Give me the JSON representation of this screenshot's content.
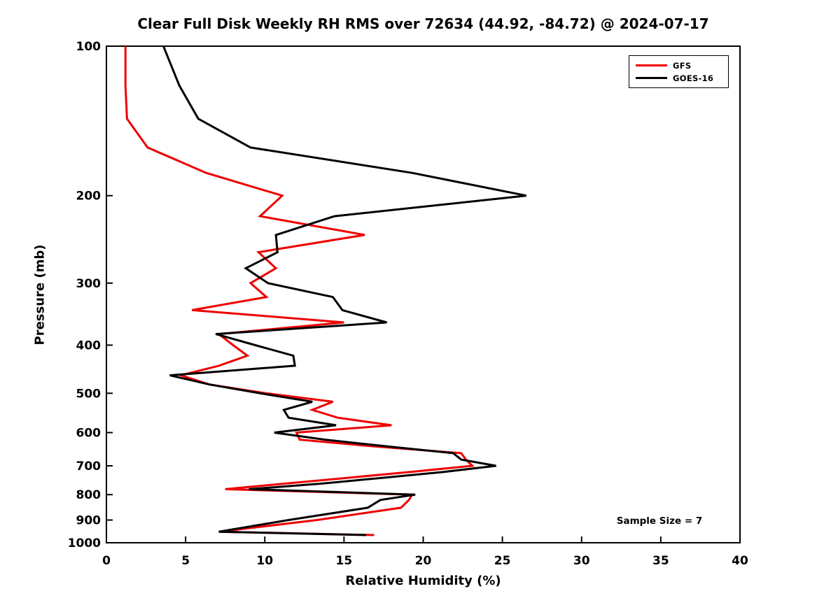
{
  "title": "Clear Full Disk Weekly RH RMS over 72634 (44.92, -84.72) @ 2024-07-17",
  "annotation": "Sample Size = 7",
  "axes": {
    "x": {
      "label": "Relative Humidity (%)",
      "min": 0,
      "max": 40,
      "ticks": [
        0,
        5,
        10,
        15,
        20,
        25,
        30,
        35,
        40
      ]
    },
    "y": {
      "label": "Pressure (mb)",
      "scale": "log",
      "min": 100,
      "max": 1000,
      "inverted": true,
      "ticks": [
        100,
        200,
        300,
        400,
        500,
        600,
        700,
        800,
        900,
        1000
      ]
    }
  },
  "legend": {
    "position": "top-right",
    "items": [
      {
        "label": "GFS",
        "color": "#EE0000"
      },
      {
        "label": "GOES-16",
        "color": "#000000"
      }
    ]
  },
  "colors": {
    "background": "#FFFFFF",
    "axis": "#000000"
  },
  "chart_data": {
    "type": "line",
    "orientation": "vertical-profile",
    "title": "Clear Full Disk Weekly RH RMS over 72634 (44.92, -84.72) @ 2024-07-17",
    "xlabel": "Relative Humidity (%)",
    "ylabel": "Pressure (mb)",
    "xlim": [
      0,
      40
    ],
    "ylim": [
      100,
      1000
    ],
    "y_scale": "log",
    "grid": false,
    "pressure_levels_mb": [
      100,
      120,
      140,
      160,
      180,
      200,
      220,
      240,
      260,
      280,
      300,
      320,
      340,
      360,
      380,
      400,
      420,
      440,
      460,
      480,
      500,
      520,
      540,
      560,
      580,
      600,
      620,
      640,
      660,
      680,
      700,
      720,
      740,
      760,
      780,
      800,
      820,
      850,
      900,
      950,
      965
    ],
    "series": [
      {
        "name": "GFS",
        "color": "#EE0000",
        "line_width": 3,
        "rh_rms": [
          1.2,
          1.2,
          1.3,
          2.6,
          6.3,
          11.1,
          9.7,
          16.3,
          9.6,
          10.7,
          9.1,
          10.1,
          5.4,
          15.0,
          7.1,
          8.0,
          8.9,
          7.1,
          4.7,
          6.5,
          10.1,
          14.3,
          13.0,
          14.6,
          18.0,
          12.0,
          12.2,
          17.0,
          22.4,
          22.7,
          23.1,
          19.2,
          15.2,
          11.3,
          7.5,
          19.3,
          19.1,
          18.6,
          13.3,
          7.1,
          16.9
        ]
      },
      {
        "name": "GOES-16",
        "color": "#000000",
        "line_width": 3,
        "rh_rms": [
          3.6,
          4.6,
          5.8,
          9.1,
          19.3,
          26.5,
          14.4,
          10.7,
          10.8,
          8.8,
          10.2,
          14.3,
          14.9,
          17.7,
          6.9,
          9.4,
          11.8,
          11.9,
          4.0,
          6.5,
          9.7,
          13.0,
          11.2,
          11.5,
          14.5,
          10.6,
          13.8,
          17.8,
          21.9,
          22.4,
          24.6,
          21.3,
          17.4,
          13.6,
          9.0,
          19.5,
          17.3,
          16.5,
          11.5,
          7.1,
          16.4
        ]
      }
    ]
  }
}
